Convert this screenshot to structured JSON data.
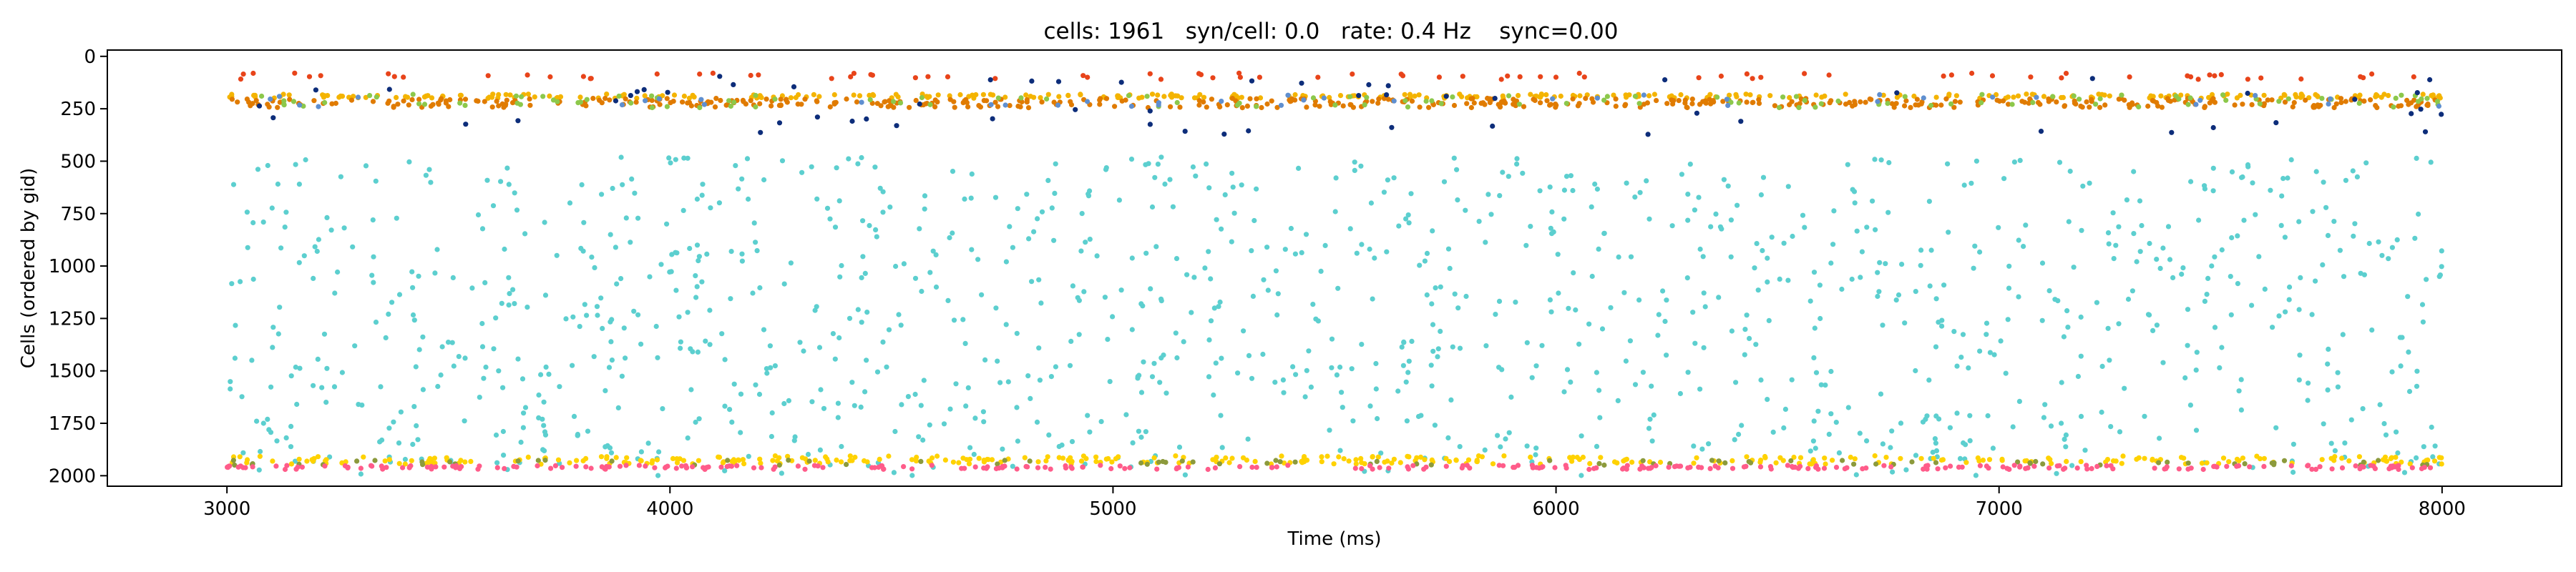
{
  "chart_data": {
    "type": "scatter",
    "title": "cells: 1961   syn/cell: 0.0   rate: 0.4 Hz    sync=0.00",
    "xlabel": "Time (ms)",
    "ylabel": "Cells (ordered by gid)",
    "xlim": [
      2730,
      8270
    ],
    "ylim": [
      2050,
      -30
    ],
    "y_inverted": true,
    "grid": false,
    "legend": "none",
    "xticks": [
      3000,
      4000,
      5000,
      6000,
      7000,
      8000
    ],
    "xtick_labels": [
      "3000",
      "4000",
      "5000",
      "6000",
      "7000",
      "8000"
    ],
    "yticks": [
      0,
      250,
      500,
      750,
      1000,
      1250,
      1500,
      1750,
      2000
    ],
    "ytick_labels": [
      "0",
      "250",
      "500",
      "750",
      "1000",
      "1250",
      "1500",
      "1750",
      "2000"
    ],
    "series": [
      {
        "color": "#f4b400",
        "approx_spike_count": 300,
        "gid_range": [
          180,
          200
        ]
      },
      {
        "color": "#e07b00",
        "approx_spike_count": 500,
        "gid_range": [
          200,
          245
        ]
      },
      {
        "color": "#8cc84b",
        "approx_spike_count": 120,
        "gid_range": [
          180,
          245
        ]
      },
      {
        "color": "#5f8fd0",
        "approx_spike_count": 40,
        "gid_range": [
          180,
          245
        ]
      },
      {
        "color": "#e8441a",
        "approx_spike_count": 80,
        "gid_range": [
          80,
          110
        ]
      },
      {
        "color": "#0d2d7a",
        "approx_spike_count": 60,
        "gid_range": [
          90,
          380
        ]
      },
      {
        "color": "#5ccfcf",
        "approx_spike_count": 1200,
        "gid_range": [
          480,
          2000
        ]
      },
      {
        "color": "#ffd200",
        "approx_spike_count": 350,
        "gid_range": [
          1905,
          1945
        ]
      },
      {
        "color": "#8c9a3c",
        "approx_spike_count": 80,
        "gid_range": [
          1925,
          1950
        ]
      },
      {
        "color": "#ff5c8a",
        "approx_spike_count": 300,
        "gid_range": [
          1950,
          1970
        ]
      }
    ]
  }
}
